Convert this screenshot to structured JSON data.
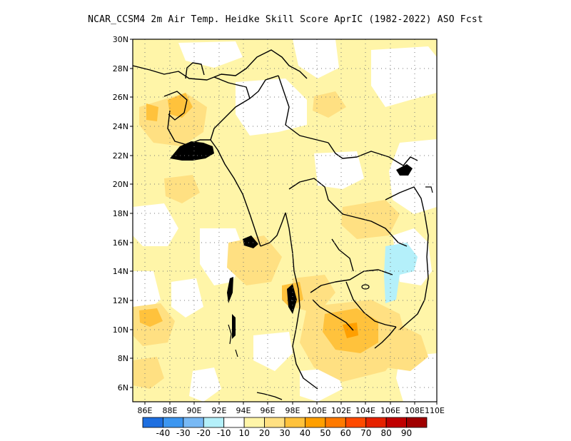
{
  "title": "NCAR_CCSM4  2m Air Temp. Heidke Skill Score AprIC (1982-2022) ASO Fcst",
  "map": {
    "lon_range": [
      "86E",
      "110E"
    ],
    "lat_range": [
      "5N",
      "30N"
    ],
    "x_ticks": [
      "86E",
      "88E",
      "90E",
      "92E",
      "94E",
      "96E",
      "98E",
      "100E",
      "102E",
      "104E",
      "106E",
      "108E",
      "110E"
    ],
    "y_ticks": [
      "6N",
      "8N",
      "10N",
      "12N",
      "14N",
      "16N",
      "18N",
      "20N",
      "22N",
      "24N",
      "26N",
      "28N",
      "30N"
    ],
    "grid": true
  },
  "colorbar": {
    "colors": [
      "#1e6fe0",
      "#3c96f0",
      "#78b9f5",
      "#b4f0fa",
      "#ffffff",
      "#fff5a8",
      "#ffe082",
      "#ffc23c",
      "#ff9f00",
      "#ff7a00",
      "#ff4a00",
      "#e62200",
      "#c00000",
      "#a00000"
    ],
    "labels": [
      "-40",
      "-30",
      "-20",
      "-10",
      "10",
      "20",
      "30",
      "40",
      "50",
      "60",
      "70",
      "80",
      "90"
    ]
  }
}
